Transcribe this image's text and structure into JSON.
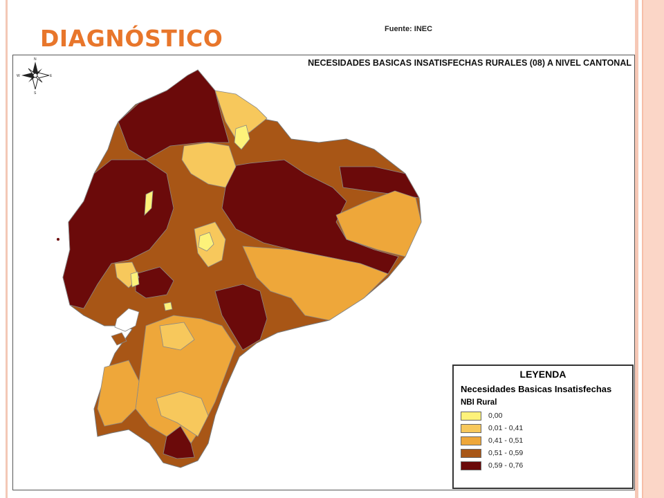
{
  "slide": {
    "title": "DIAGNÓSTICO",
    "source": "Fuente: INEC"
  },
  "map": {
    "title": "NECESIDADES BASICAS INSATISFECHAS RURALES (08) A NIVEL CANTONAL",
    "compass_letters": [
      "N",
      "E",
      "S",
      "W"
    ]
  },
  "legend": {
    "heading": "LEYENDA",
    "subtitle": "Necesidades Basicas Insatisfechas",
    "group": "NBI Rural",
    "items": [
      {
        "label": "0,00",
        "color": "#fdf27a"
      },
      {
        "label": "0,01 - 0,41",
        "color": "#f7c85c"
      },
      {
        "label": "0,41 - 0,51",
        "color": "#eea73a"
      },
      {
        "label": "0,51 - 0,59",
        "color": "#a85616"
      },
      {
        "label": "0,59 - 0,76",
        "color": "#6b0a0a"
      }
    ]
  }
}
